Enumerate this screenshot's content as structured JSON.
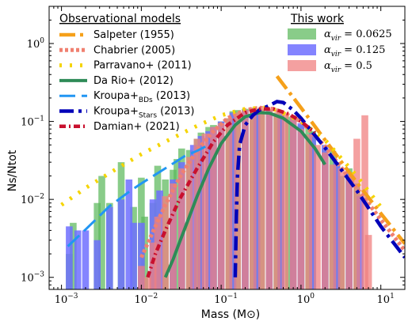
{
  "chart_data": {
    "type": "bar",
    "xlabel": "Mass (M⊙)",
    "ylabel": "Ns/Ntot",
    "xscale": "log",
    "yscale": "log",
    "xlim": [
      0.0007,
      20
    ],
    "ylim": [
      0.0007,
      3
    ],
    "x_ticks": [
      {
        "value": 0.001,
        "base": "10",
        "exp": "−3"
      },
      {
        "value": 0.01,
        "base": "10",
        "exp": "−2"
      },
      {
        "value": 0.1,
        "base": "10",
        "exp": "−1"
      },
      {
        "value": 1,
        "base": "10",
        "exp": "0"
      },
      {
        "value": 10,
        "base": "10",
        "exp": "1"
      }
    ],
    "y_ticks": [
      {
        "value": 0.001,
        "base": "10",
        "exp": "−3"
      },
      {
        "value": 0.01,
        "base": "10",
        "exp": "−2"
      },
      {
        "value": 0.1,
        "base": "10",
        "exp": "−1"
      },
      {
        "value": 1,
        "base": "10",
        "exp": "0"
      }
    ],
    "histograms": [
      {
        "name": "αvir = 0.0625",
        "color": "#5cb85c",
        "opacity": 0.72,
        "bars": [
          [
            0.00125,
            0.002
          ],
          [
            0.0014,
            0.005
          ],
          [
            0.0028,
            0.009
          ],
          [
            0.0032,
            0.02
          ],
          [
            0.004,
            0.009
          ],
          [
            0.0056,
            0.03
          ],
          [
            0.008,
            0.008
          ],
          [
            0.01,
            0.019
          ],
          [
            0.011,
            0.006
          ],
          [
            0.014,
            0.009
          ],
          [
            0.016,
            0.027
          ],
          [
            0.02,
            0.018
          ],
          [
            0.025,
            0.024
          ],
          [
            0.028,
            0.033
          ],
          [
            0.032,
            0.045
          ],
          [
            0.04,
            0.043
          ],
          [
            0.05,
            0.06
          ],
          [
            0.056,
            0.072
          ],
          [
            0.07,
            0.085
          ],
          [
            0.08,
            0.09
          ],
          [
            0.1,
            0.1
          ],
          [
            0.125,
            0.11
          ],
          [
            0.14,
            0.135
          ],
          [
            0.16,
            0.14
          ],
          [
            0.2,
            0.145
          ],
          [
            0.25,
            0.15
          ],
          [
            0.28,
            0.145
          ],
          [
            0.32,
            0.14
          ],
          [
            0.4,
            0.14
          ],
          [
            0.5,
            0.13
          ],
          [
            0.56,
            0.12
          ],
          [
            0.7,
            0.115
          ],
          [
            0.8,
            0.105
          ],
          [
            1.0,
            0.09
          ],
          [
            1.25,
            0.085
          ],
          [
            1.4,
            0.075
          ],
          [
            2.0,
            0.045
          ],
          [
            2.5,
            0.042
          ],
          [
            2.8,
            0.03
          ],
          [
            3.2,
            0.02
          ],
          [
            4.0,
            0.025
          ],
          [
            5.0,
            0.016
          ]
        ]
      },
      {
        "name": "αvir = 0.125",
        "color": "#6f6fff",
        "opacity": 0.85,
        "bars": [
          [
            0.00125,
            0.0045
          ],
          [
            0.0016,
            0.004
          ],
          [
            0.002,
            0.004
          ],
          [
            0.0028,
            0.003
          ],
          [
            0.004,
            0.008
          ],
          [
            0.0056,
            0.01
          ],
          [
            0.007,
            0.018
          ],
          [
            0.008,
            0.005
          ],
          [
            0.01,
            0.005
          ],
          [
            0.014,
            0.01
          ],
          [
            0.017,
            0.013
          ],
          [
            0.025,
            0.018
          ],
          [
            0.032,
            0.03
          ],
          [
            0.045,
            0.05
          ],
          [
            0.056,
            0.065
          ],
          [
            0.07,
            0.075
          ],
          [
            0.08,
            0.085
          ],
          [
            0.1,
            0.1
          ],
          [
            0.14,
            0.13
          ],
          [
            0.2,
            0.14
          ],
          [
            0.28,
            0.14
          ],
          [
            0.4,
            0.14
          ],
          [
            0.56,
            0.125
          ],
          [
            0.8,
            0.11
          ],
          [
            1.0,
            0.095
          ],
          [
            1.4,
            0.07
          ],
          [
            2.0,
            0.05
          ],
          [
            2.8,
            0.03
          ],
          [
            4.0,
            0.022
          ],
          [
            5.5,
            0.011
          ]
        ]
      },
      {
        "name": "αvir = 0.5",
        "color": "#f08080",
        "opacity": 0.75,
        "bars": [
          [
            0.01,
            0.0014
          ],
          [
            0.012,
            0.001
          ],
          [
            0.014,
            0.0028
          ],
          [
            0.016,
            0.006
          ],
          [
            0.02,
            0.011
          ],
          [
            0.025,
            0.016
          ],
          [
            0.032,
            0.025
          ],
          [
            0.04,
            0.035
          ],
          [
            0.05,
            0.06
          ],
          [
            0.063,
            0.07
          ],
          [
            0.08,
            0.085
          ],
          [
            0.1,
            0.095
          ],
          [
            0.125,
            0.11
          ],
          [
            0.16,
            0.13
          ],
          [
            0.2,
            0.14
          ],
          [
            0.25,
            0.15
          ],
          [
            0.32,
            0.145
          ],
          [
            0.4,
            0.145
          ],
          [
            0.5,
            0.13
          ],
          [
            0.63,
            0.13
          ],
          [
            0.8,
            0.12
          ],
          [
            1.0,
            0.08
          ],
          [
            1.25,
            0.068
          ],
          [
            1.6,
            0.05
          ],
          [
            2.0,
            0.04
          ],
          [
            2.5,
            0.028
          ],
          [
            3.2,
            0.025
          ],
          [
            4.0,
            0.02
          ],
          [
            5.0,
            0.06
          ],
          [
            6.3,
            0.12
          ],
          [
            7.0,
            0.0035
          ]
        ]
      }
    ],
    "models": [
      {
        "name": "Salpeter (1955)",
        "color": "#f5a01a",
        "dash": "20 6 4 6",
        "width": 4.5,
        "points": [
          [
            0.5,
            0.38
          ],
          [
            1,
            0.15
          ],
          [
            2,
            0.058
          ],
          [
            5,
            0.0165
          ],
          [
            10,
            0.0066
          ],
          [
            20,
            0.0027
          ]
        ]
      },
      {
        "name": "Chabrier (2005)",
        "color": "#f08070",
        "dash": "4 3",
        "width": 5,
        "points": [
          [
            0.01,
            0.0018
          ],
          [
            0.015,
            0.0045
          ],
          [
            0.02,
            0.0085
          ],
          [
            0.03,
            0.019
          ],
          [
            0.05,
            0.043
          ],
          [
            0.08,
            0.075
          ],
          [
            0.12,
            0.11
          ],
          [
            0.2,
            0.14
          ],
          [
            0.3,
            0.15
          ],
          [
            0.45,
            0.145
          ],
          [
            0.7,
            0.12
          ],
          [
            1,
            0.1
          ],
          [
            2,
            0.048
          ],
          [
            5,
            0.014
          ],
          [
            10,
            0.0055
          ],
          [
            20,
            0.0022
          ]
        ]
      },
      {
        "name": "Parravano+ (2011)",
        "color": "#f5d400",
        "dash": "3 10",
        "width": 5,
        "points": [
          [
            0.001,
            0.0085
          ],
          [
            0.002,
            0.014
          ],
          [
            0.005,
            0.025
          ],
          [
            0.01,
            0.038
          ],
          [
            0.02,
            0.055
          ],
          [
            0.05,
            0.088
          ],
          [
            0.1,
            0.12
          ],
          [
            0.2,
            0.145
          ],
          [
            0.35,
            0.15
          ],
          [
            0.5,
            0.14
          ],
          [
            1,
            0.1
          ],
          [
            2,
            0.058
          ],
          [
            5,
            0.02
          ],
          [
            10,
            0.008
          ]
        ]
      },
      {
        "name": "Da Rio+ (2012)",
        "color": "#2e8b57",
        "dash": "",
        "width": 4,
        "points": [
          [
            0.02,
            0.001
          ],
          [
            0.025,
            0.0017
          ],
          [
            0.03,
            0.0028
          ],
          [
            0.04,
            0.006
          ],
          [
            0.05,
            0.011
          ],
          [
            0.07,
            0.025
          ],
          [
            0.1,
            0.052
          ],
          [
            0.15,
            0.09
          ],
          [
            0.2,
            0.115
          ],
          [
            0.3,
            0.13
          ],
          [
            0.4,
            0.128
          ],
          [
            0.6,
            0.11
          ],
          [
            1,
            0.075
          ],
          [
            1.5,
            0.045
          ],
          [
            2,
            0.028
          ]
        ]
      },
      {
        "name": "Kroupa+BDs (2013)",
        "color": "#2196f3",
        "dash": "20 8",
        "width": 3,
        "points": [
          [
            0.0012,
            0.0025
          ],
          [
            0.002,
            0.0041
          ],
          [
            0.004,
            0.0082
          ],
          [
            0.007,
            0.0125
          ],
          [
            0.01,
            0.016
          ],
          [
            0.02,
            0.025
          ],
          [
            0.035,
            0.036
          ],
          [
            0.05,
            0.042
          ],
          [
            0.07,
            0.05
          ]
        ]
      },
      {
        "name": "Kroupa+Stars (2013)",
        "color": "#0000b8",
        "dash": "18 6 4 6",
        "width": 4.5,
        "points": [
          [
            0.15,
            0.001
          ],
          [
            0.155,
            0.006
          ],
          [
            0.16,
            0.02
          ],
          [
            0.17,
            0.05
          ],
          [
            0.2,
            0.09
          ],
          [
            0.25,
            0.12
          ],
          [
            0.3,
            0.14
          ],
          [
            0.4,
            0.16
          ],
          [
            0.5,
            0.18
          ],
          [
            0.6,
            0.175
          ],
          [
            0.8,
            0.14
          ],
          [
            1,
            0.11
          ],
          [
            2,
            0.046
          ],
          [
            5,
            0.013
          ],
          [
            10,
            0.0045
          ],
          [
            20,
            0.0018
          ]
        ]
      },
      {
        "name": "Damian+ (2021)",
        "color": "#c8102e",
        "dash": "8 4 2 4",
        "width": 4.5,
        "points": [
          [
            0.012,
            0.001
          ],
          [
            0.015,
            0.002
          ],
          [
            0.02,
            0.004
          ],
          [
            0.03,
            0.01
          ],
          [
            0.05,
            0.025
          ],
          [
            0.08,
            0.055
          ],
          [
            0.12,
            0.09
          ],
          [
            0.2,
            0.13
          ],
          [
            0.3,
            0.145
          ],
          [
            0.45,
            0.145
          ],
          [
            0.7,
            0.125
          ],
          [
            1,
            0.1
          ],
          [
            1.5,
            0.072
          ]
        ]
      }
    ],
    "legend_left": {
      "title": "Observational models",
      "entries": [
        {
          "parts": [
            "Salpeter (1955)"
          ]
        },
        {
          "parts": [
            "Chabrier (2005)"
          ]
        },
        {
          "parts": [
            "Parravano+ (2011)"
          ]
        },
        {
          "parts": [
            "Da Rio+ (2012)"
          ]
        },
        {
          "parts": [
            "Kroupa+",
            "BDs",
            " (2013)"
          ]
        },
        {
          "parts": [
            "Kroupa+",
            "Stars",
            " (2013)"
          ]
        },
        {
          "parts": [
            "Damian+ (2021)"
          ]
        }
      ]
    },
    "legend_right": {
      "title": "This work",
      "entries": [
        {
          "sym": "α",
          "sub": "vir",
          "eq": " = 0.0625"
        },
        {
          "sym": "α",
          "sub": "vir",
          "eq": " = 0.125"
        },
        {
          "sym": "α",
          "sub": "vir",
          "eq": " = 0.5"
        }
      ]
    },
    "legend_placement": {
      "models": "top-left",
      "histograms": "top-right"
    },
    "grid": false
  }
}
